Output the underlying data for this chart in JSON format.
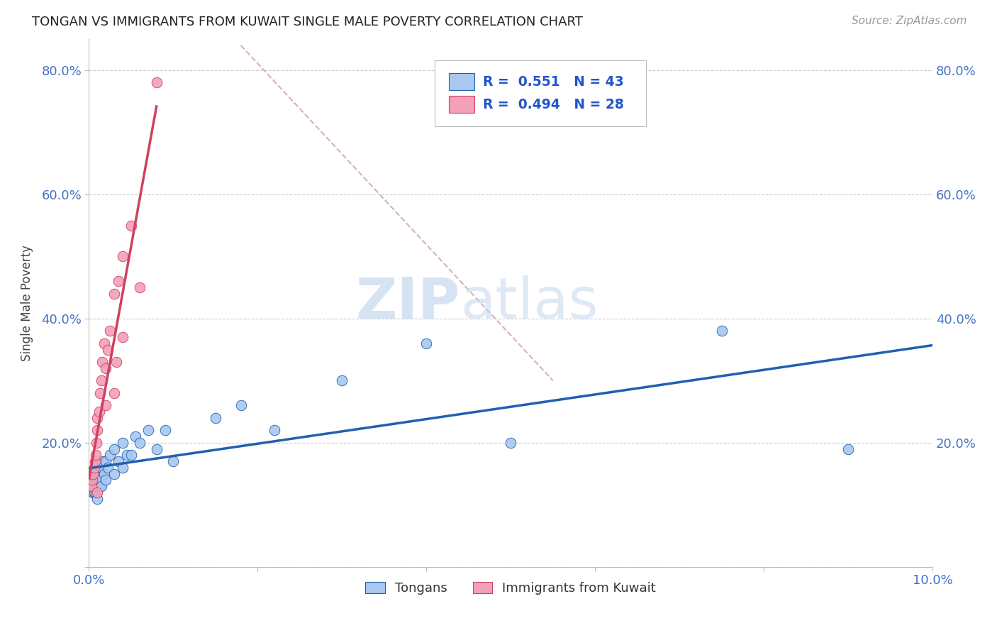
{
  "title": "TONGAN VS IMMIGRANTS FROM KUWAIT SINGLE MALE POVERTY CORRELATION CHART",
  "source": "Source: ZipAtlas.com",
  "ylabel": "Single Male Poverty",
  "legend_label1": "Tongans",
  "legend_label2": "Immigrants from Kuwait",
  "R1": 0.551,
  "N1": 43,
  "R2": 0.494,
  "N2": 28,
  "xlim": [
    0.0,
    0.1
  ],
  "ylim": [
    0.0,
    0.85
  ],
  "color_tongans": "#A8C8F0",
  "color_kuwait": "#F4A0B8",
  "trendline_color_tongans": "#2060B0",
  "trendline_color_kuwait": "#D04060",
  "trendline_dashed_color": "#D0D0D0",
  "background_color": "#FFFFFF",
  "watermark_zip": "ZIP",
  "watermark_atlas": "atlas",
  "tongans_x": [
    0.0005,
    0.0005,
    0.0006,
    0.0007,
    0.0008,
    0.0008,
    0.0009,
    0.001,
    0.001,
    0.001,
    0.001,
    0.0012,
    0.0013,
    0.0014,
    0.0015,
    0.0015,
    0.0016,
    0.0018,
    0.002,
    0.002,
    0.0022,
    0.0025,
    0.003,
    0.003,
    0.0035,
    0.004,
    0.004,
    0.0045,
    0.005,
    0.0055,
    0.006,
    0.007,
    0.008,
    0.009,
    0.01,
    0.015,
    0.018,
    0.022,
    0.03,
    0.04,
    0.05,
    0.075,
    0.09
  ],
  "tongans_y": [
    0.12,
    0.13,
    0.12,
    0.14,
    0.12,
    0.13,
    0.14,
    0.11,
    0.13,
    0.14,
    0.15,
    0.13,
    0.15,
    0.14,
    0.16,
    0.13,
    0.17,
    0.15,
    0.14,
    0.17,
    0.16,
    0.18,
    0.15,
    0.19,
    0.17,
    0.16,
    0.2,
    0.18,
    0.18,
    0.21,
    0.2,
    0.22,
    0.19,
    0.22,
    0.17,
    0.24,
    0.26,
    0.22,
    0.3,
    0.36,
    0.2,
    0.38,
    0.19
  ],
  "kuwait_x": [
    0.0003,
    0.0004,
    0.0005,
    0.0006,
    0.0007,
    0.0008,
    0.0009,
    0.001,
    0.001,
    0.001,
    0.0012,
    0.0013,
    0.0015,
    0.0016,
    0.0018,
    0.002,
    0.002,
    0.0022,
    0.0025,
    0.003,
    0.003,
    0.0032,
    0.0035,
    0.004,
    0.004,
    0.005,
    0.006,
    0.008
  ],
  "kuwait_y": [
    0.13,
    0.14,
    0.15,
    0.16,
    0.17,
    0.18,
    0.2,
    0.12,
    0.22,
    0.24,
    0.25,
    0.28,
    0.3,
    0.33,
    0.36,
    0.26,
    0.32,
    0.35,
    0.38,
    0.28,
    0.44,
    0.33,
    0.46,
    0.37,
    0.5,
    0.55,
    0.45,
    0.78
  ],
  "dash_line_x": [
    0.018,
    0.055
  ],
  "dash_line_y": [
    0.84,
    0.3
  ]
}
